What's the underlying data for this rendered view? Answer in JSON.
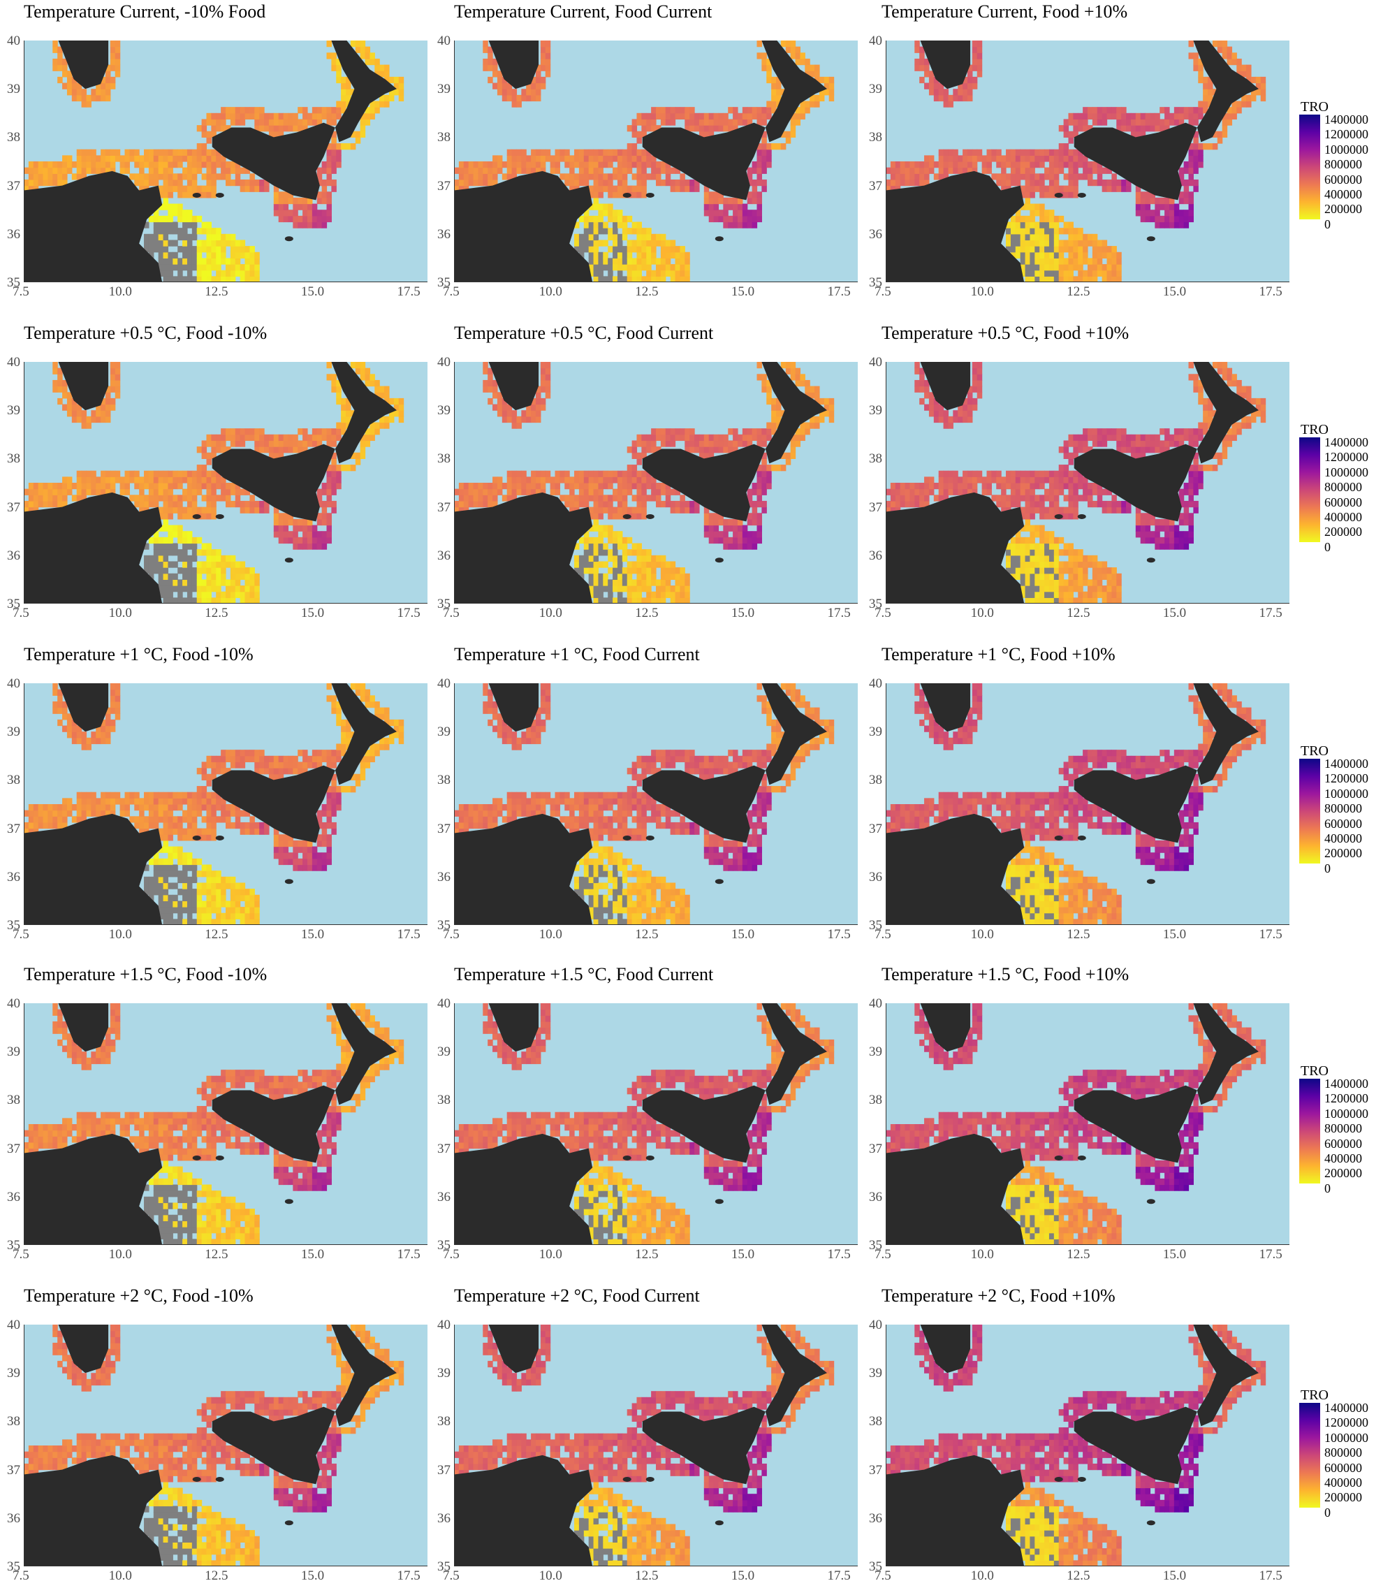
{
  "colors": {
    "sea": "#add8e6",
    "land": "#2b2b2b",
    "na": "#7f7f7f",
    "scale": [
      "#f0f921",
      "#fdb42f",
      "#ed7953",
      "#cc4778",
      "#9c179e",
      "#5c01a6",
      "#0d0887"
    ]
  },
  "axes": {
    "x_ticks": [
      "7.5",
      "10.0",
      "12.5",
      "15.0",
      "17.5"
    ],
    "y_ticks": [
      "35",
      "36",
      "37",
      "38",
      "39",
      "40"
    ],
    "xlim": [
      7.5,
      18.0
    ],
    "ylim": [
      35,
      40
    ]
  },
  "legend": {
    "title": "TRO",
    "labels": [
      "1400000",
      "1200000",
      "1000000",
      "800000",
      "600000",
      "400000",
      "200000",
      "0"
    ]
  },
  "panels": [
    {
      "title": "Temperature Current, -10% Food",
      "temp_step": 0,
      "food": -1
    },
    {
      "title": "Temperature Current, Food Current",
      "temp_step": 0,
      "food": 0
    },
    {
      "title": "Temperature Current, Food +10%",
      "temp_step": 0,
      "food": 1
    },
    {
      "title": "Temperature +0.5 °C, Food -10%",
      "temp_step": 1,
      "food": -1
    },
    {
      "title": "Temperature +0.5 °C, Food Current",
      "temp_step": 1,
      "food": 0
    },
    {
      "title": "Temperature +0.5 °C, Food +10%",
      "temp_step": 1,
      "food": 1
    },
    {
      "title": "Temperature +1 °C, Food -10%",
      "temp_step": 2,
      "food": -1
    },
    {
      "title": "Temperature +1 °C, Food Current",
      "temp_step": 2,
      "food": 0
    },
    {
      "title": "Temperature +1 °C, Food +10%",
      "temp_step": 2,
      "food": 1
    },
    {
      "title": "Temperature +1.5 °C, Food -10%",
      "temp_step": 3,
      "food": -1
    },
    {
      "title": "Temperature +1.5 °C, Food Current",
      "temp_step": 3,
      "food": 0
    },
    {
      "title": "Temperature +1.5 °C, Food +10%",
      "temp_step": 3,
      "food": 1
    },
    {
      "title": "Temperature +2 °C, Food -10%",
      "temp_step": 4,
      "food": -1
    },
    {
      "title": "Temperature +2 °C, Food Current",
      "temp_step": 4,
      "food": 0
    },
    {
      "title": "Temperature +2 °C, Food +10%",
      "temp_step": 4,
      "food": 1
    }
  ]
}
